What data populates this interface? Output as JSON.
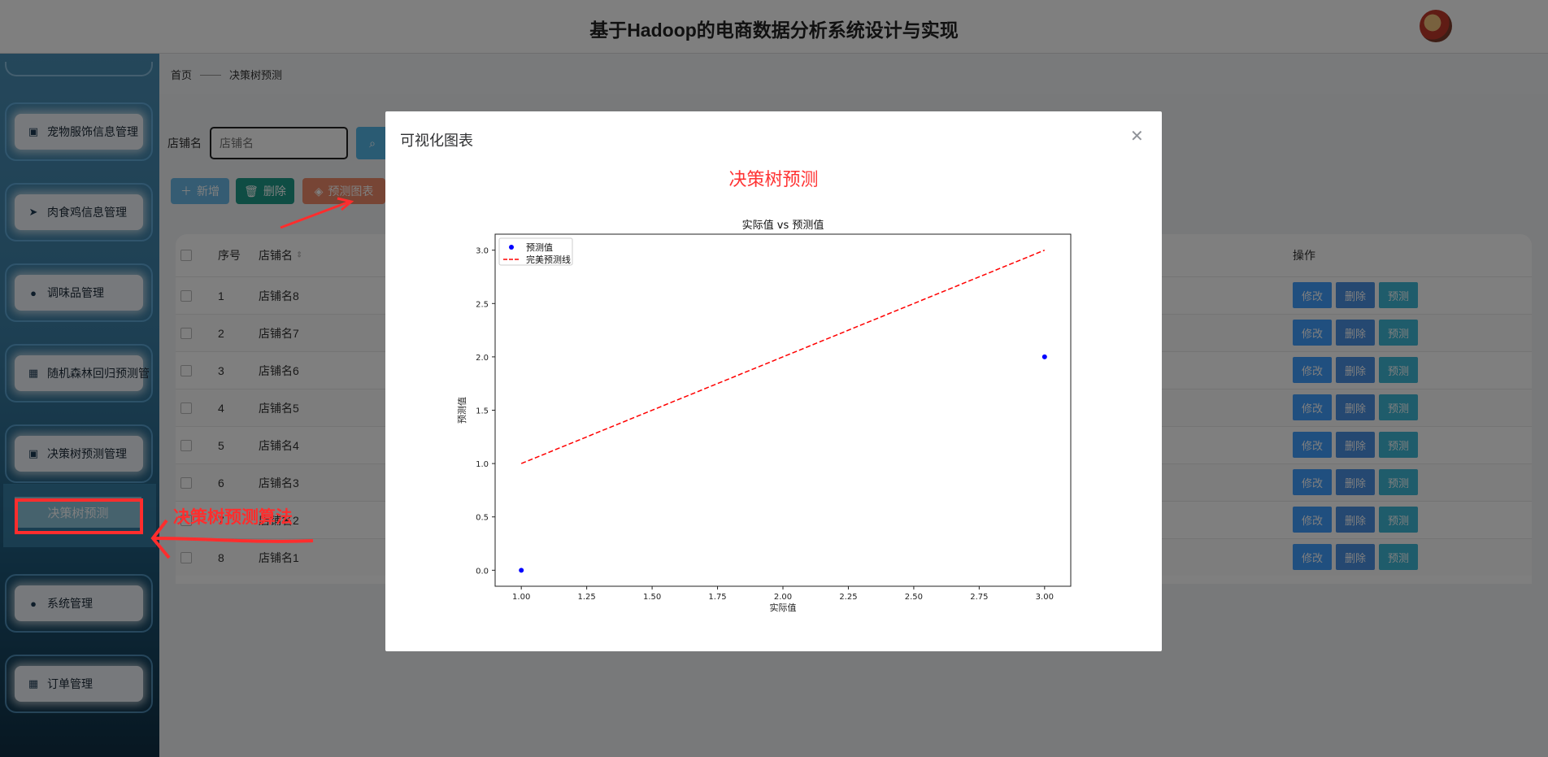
{
  "header": {
    "title": "基于Hadoop的电商数据分析系统设计与实现"
  },
  "sidebar": {
    "items": [
      {
        "label": "宠物服饰信息管理",
        "icon": "clipboard-check-icon",
        "glyph": "▣"
      },
      {
        "label": "肉食鸡信息管理",
        "icon": "paper-plane-icon",
        "glyph": "➤"
      },
      {
        "label": "调味品管理",
        "icon": "user-icon",
        "glyph": "●"
      },
      {
        "label": "随机森林回归预测管",
        "icon": "grid-icon",
        "glyph": "▦"
      },
      {
        "label": "决策树预测管理",
        "icon": "clipboard-x-icon",
        "glyph": "▣"
      },
      {
        "label": "系统管理",
        "icon": "lightbulb-icon",
        "glyph": "●"
      },
      {
        "label": "订单管理",
        "icon": "grid-icon",
        "glyph": "▦"
      }
    ],
    "sub_item": "决策树预测"
  },
  "breadcrumb": {
    "home": "首页",
    "sep": "——",
    "current": "决策树预测"
  },
  "search": {
    "label": "店铺名",
    "placeholder": "店铺名"
  },
  "toolbar": {
    "add": "新增",
    "delete": "删除",
    "chart": "预测图表"
  },
  "table": {
    "headers": {
      "index": "序号",
      "name": "店铺名",
      "ops": "操作"
    },
    "rows": [
      {
        "index": "1",
        "name": "店铺名8"
      },
      {
        "index": "2",
        "name": "店铺名7"
      },
      {
        "index": "3",
        "name": "店铺名6"
      },
      {
        "index": "4",
        "name": "店铺名5"
      },
      {
        "index": "5",
        "name": "店铺名4"
      },
      {
        "index": "6",
        "name": "店铺名3"
      },
      {
        "index": "7",
        "name": "店铺名2"
      },
      {
        "index": "8",
        "name": "店铺名1"
      }
    ],
    "op_labels": {
      "edit": "修改",
      "delete": "删除",
      "predict": "预测"
    }
  },
  "dialog": {
    "title": "可视化图表",
    "heading": "决策树预测",
    "close_icon": "close-icon"
  },
  "chart_data": {
    "type": "scatter",
    "title": "实际值 vs 预测值",
    "xlabel": "实际值",
    "ylabel": "预测值",
    "xlim": [
      0.9,
      3.1
    ],
    "ylim": [
      -0.15,
      3.15
    ],
    "xticks": [
      "1.00",
      "1.25",
      "1.50",
      "1.75",
      "2.00",
      "2.25",
      "2.50",
      "2.75",
      "3.00"
    ],
    "yticks": [
      "0.0",
      "0.5",
      "1.0",
      "1.5",
      "2.0",
      "2.5",
      "3.0"
    ],
    "grid": false,
    "legend": "top-left",
    "series": [
      {
        "name": "预测值",
        "kind": "points",
        "color": "#0000ff",
        "x": [
          1,
          3
        ],
        "y": [
          0,
          2
        ]
      },
      {
        "name": "完美预测线",
        "kind": "dashed-line",
        "color": "#ff0000",
        "x": [
          1,
          3
        ],
        "y": [
          1,
          3
        ]
      }
    ]
  },
  "annotation": {
    "text": "决策树预测算法",
    "color": "#ff2d2d"
  }
}
